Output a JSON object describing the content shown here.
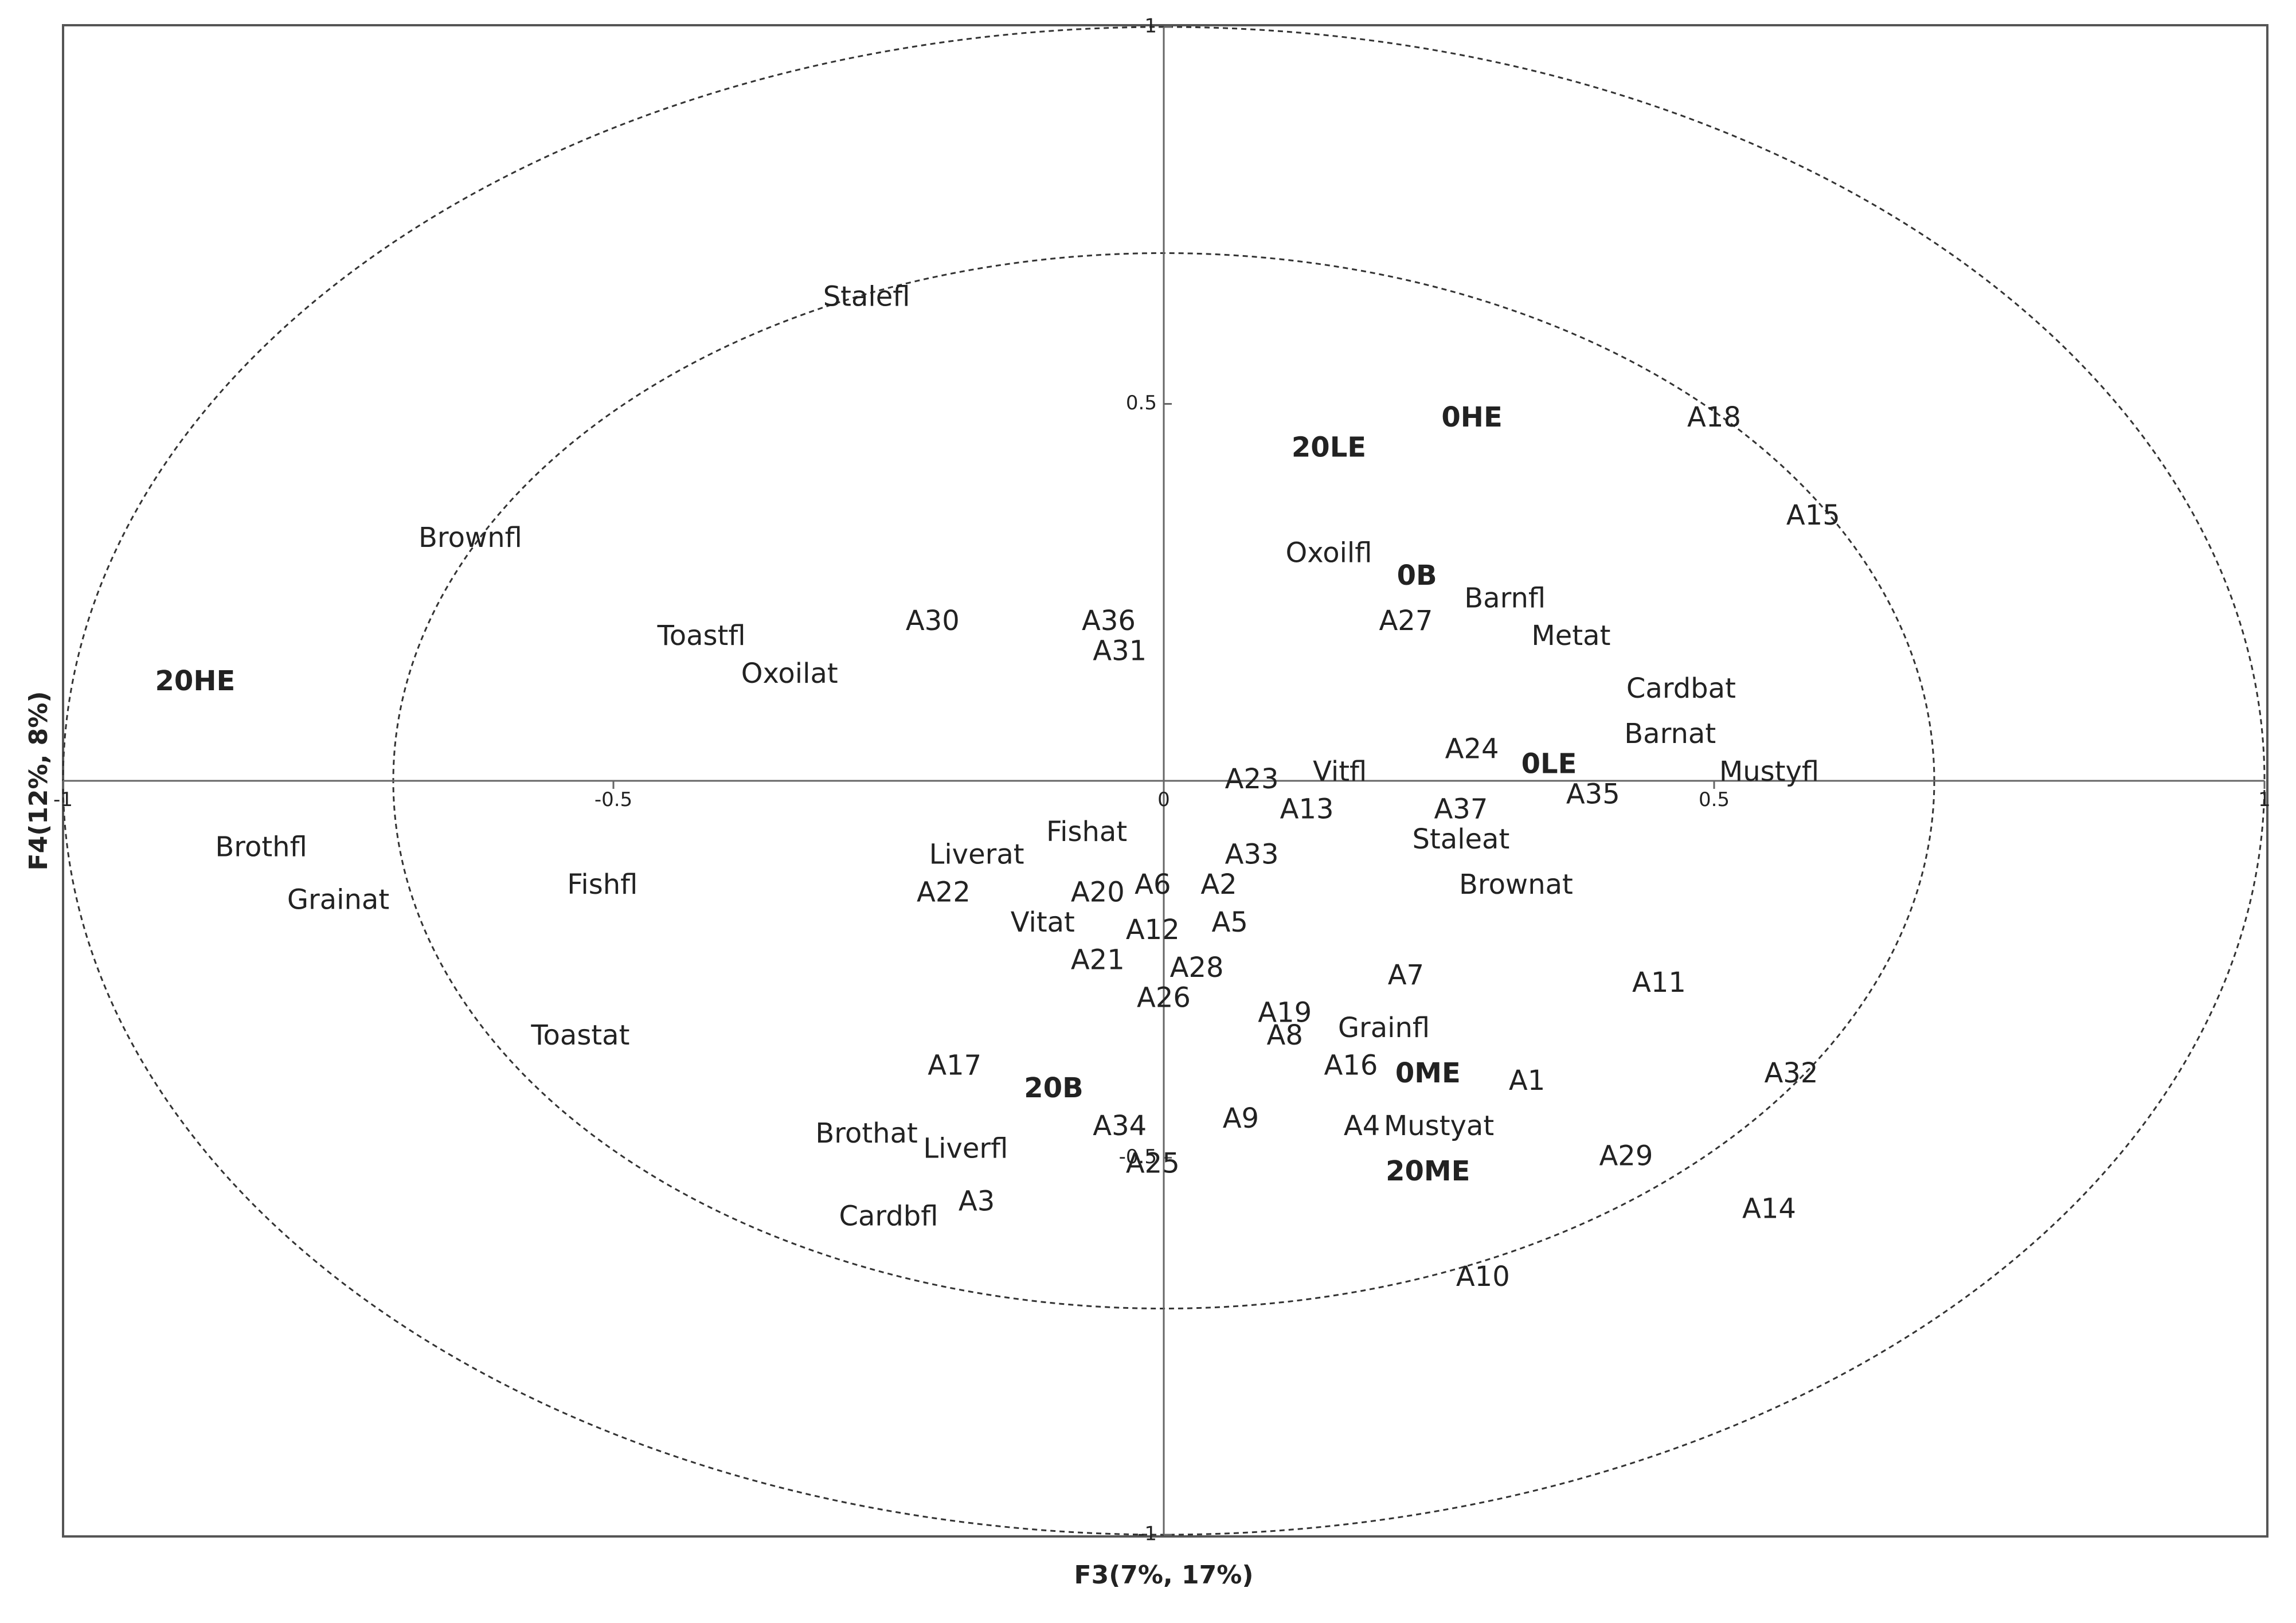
{
  "chart_data": {
    "type": "scatter",
    "title": "",
    "xlabel": "F3(7%, 17%)",
    "ylabel": "F4(12%, 8%)",
    "xlim": [
      -1,
      1
    ],
    "ylim": [
      -1,
      1
    ],
    "x_ticks": [
      -1,
      -0.5,
      0,
      0.5,
      1
    ],
    "y_ticks": [
      -1,
      -0.5,
      0,
      0.5,
      1
    ],
    "circles": [
      1,
      0.7
    ],
    "grid": false,
    "legend": "none",
    "series": [
      {
        "points": [
          {
            "label": "20HE",
            "x": -0.88,
            "y": 0.13,
            "bold": true
          },
          {
            "label": "0HE",
            "x": 0.28,
            "y": 0.48,
            "bold": true
          },
          {
            "label": "20LE",
            "x": 0.15,
            "y": 0.44,
            "bold": true
          },
          {
            "label": "0B",
            "x": 0.23,
            "y": 0.27,
            "bold": true
          },
          {
            "label": "0LE",
            "x": 0.35,
            "y": 0.02,
            "bold": true
          },
          {
            "label": "0ME",
            "x": 0.24,
            "y": -0.39,
            "bold": true
          },
          {
            "label": "20ME",
            "x": 0.24,
            "y": -0.52,
            "bold": true
          },
          {
            "label": "20B",
            "x": -0.1,
            "y": -0.41,
            "bold": true
          },
          {
            "label": "Stalefl",
            "x": -0.27,
            "y": 0.64
          },
          {
            "label": "Brownfl",
            "x": -0.63,
            "y": 0.32
          },
          {
            "label": "Toastfl",
            "x": -0.42,
            "y": 0.19
          },
          {
            "label": "Oxoilat",
            "x": -0.34,
            "y": 0.14
          },
          {
            "label": "A30",
            "x": -0.21,
            "y": 0.21
          },
          {
            "label": "A36",
            "x": -0.05,
            "y": 0.21
          },
          {
            "label": "A31",
            "x": -0.04,
            "y": 0.17
          },
          {
            "label": "Oxoilfl",
            "x": 0.15,
            "y": 0.3
          },
          {
            "label": "A18",
            "x": 0.5,
            "y": 0.48
          },
          {
            "label": "A15",
            "x": 0.59,
            "y": 0.35
          },
          {
            "label": "Barnfl",
            "x": 0.31,
            "y": 0.24
          },
          {
            "label": "A27",
            "x": 0.22,
            "y": 0.21
          },
          {
            "label": "Metat",
            "x": 0.37,
            "y": 0.19
          },
          {
            "label": "Cardbat",
            "x": 0.47,
            "y": 0.12
          },
          {
            "label": "Barnat",
            "x": 0.46,
            "y": 0.06
          },
          {
            "label": "A24",
            "x": 0.28,
            "y": 0.04
          },
          {
            "label": "Mustyfl",
            "x": 0.55,
            "y": 0.01
          },
          {
            "label": "A35",
            "x": 0.39,
            "y": -0.02
          },
          {
            "label": "Vitfl",
            "x": 0.16,
            "y": 0.01
          },
          {
            "label": "A23",
            "x": 0.08,
            "y": 0.0
          },
          {
            "label": "A13",
            "x": 0.13,
            "y": -0.04
          },
          {
            "label": "A37",
            "x": 0.27,
            "y": -0.04
          },
          {
            "label": "Staleat",
            "x": 0.27,
            "y": -0.08
          },
          {
            "label": "Brownat",
            "x": 0.32,
            "y": -0.14
          },
          {
            "label": "A33",
            "x": 0.08,
            "y": -0.1
          },
          {
            "label": "A2",
            "x": 0.05,
            "y": -0.14
          },
          {
            "label": "A5",
            "x": 0.06,
            "y": -0.19
          },
          {
            "label": "A6",
            "x": -0.01,
            "y": -0.14
          },
          {
            "label": "A20",
            "x": -0.06,
            "y": -0.15
          },
          {
            "label": "A12",
            "x": -0.01,
            "y": -0.2
          },
          {
            "label": "A28",
            "x": 0.03,
            "y": -0.25
          },
          {
            "label": "A26",
            "x": 0.0,
            "y": -0.29
          },
          {
            "label": "Fishat",
            "x": -0.07,
            "y": -0.07
          },
          {
            "label": "Liverat",
            "x": -0.17,
            "y": -0.1
          },
          {
            "label": "A22",
            "x": -0.2,
            "y": -0.15
          },
          {
            "label": "Vitat",
            "x": -0.11,
            "y": -0.19
          },
          {
            "label": "A21",
            "x": -0.06,
            "y": -0.24
          },
          {
            "label": "Brothfl",
            "x": -0.82,
            "y": -0.09
          },
          {
            "label": "Grainat",
            "x": -0.75,
            "y": -0.16
          },
          {
            "label": "Fishfl",
            "x": -0.51,
            "y": -0.14
          },
          {
            "label": "Toastat",
            "x": -0.53,
            "y": -0.34
          },
          {
            "label": "A17",
            "x": -0.19,
            "y": -0.38
          },
          {
            "label": "Brothat",
            "x": -0.27,
            "y": -0.47
          },
          {
            "label": "Liverfl",
            "x": -0.18,
            "y": -0.49
          },
          {
            "label": "A3",
            "x": -0.17,
            "y": -0.56
          },
          {
            "label": "Cardbfl",
            "x": -0.25,
            "y": -0.58
          },
          {
            "label": "A34",
            "x": -0.04,
            "y": -0.46
          },
          {
            "label": "A25",
            "x": -0.01,
            "y": -0.51
          },
          {
            "label": "A7",
            "x": 0.22,
            "y": -0.26
          },
          {
            "label": "A11",
            "x": 0.45,
            "y": -0.27
          },
          {
            "label": "A19",
            "x": 0.11,
            "y": -0.31
          },
          {
            "label": "A8",
            "x": 0.11,
            "y": -0.34
          },
          {
            "label": "Grainfl",
            "x": 0.2,
            "y": -0.33
          },
          {
            "label": "A16",
            "x": 0.17,
            "y": -0.38
          },
          {
            "label": "A1",
            "x": 0.33,
            "y": -0.4
          },
          {
            "label": "A32",
            "x": 0.57,
            "y": -0.39
          },
          {
            "label": "A9",
            "x": 0.07,
            "y": -0.45
          },
          {
            "label": "A4",
            "x": 0.18,
            "y": -0.46
          },
          {
            "label": "Mustyat",
            "x": 0.25,
            "y": -0.46
          },
          {
            "label": "A29",
            "x": 0.42,
            "y": -0.5
          },
          {
            "label": "A14",
            "x": 0.55,
            "y": -0.57
          },
          {
            "label": "A10",
            "x": 0.29,
            "y": -0.66
          }
        ]
      }
    ]
  }
}
